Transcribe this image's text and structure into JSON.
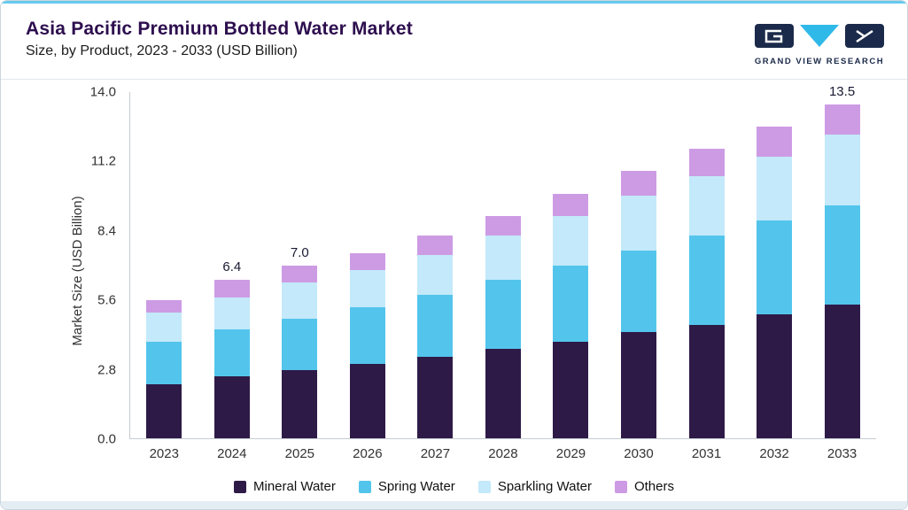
{
  "header": {
    "title": "Asia Pacific Premium Bottled Water Market",
    "subtitle": "Size, by Product, 2023 - 2033 (USD Billion)"
  },
  "logo": {
    "text": "GRAND VIEW RESEARCH"
  },
  "colors": {
    "accent_line": "#66C9EE",
    "title_text": "#2D0E4E",
    "axis_line": "#C6CCD2",
    "logo_navy": "#1B2A4A",
    "logo_cyan": "#2FB9E9"
  },
  "chart_data": {
    "type": "bar",
    "stacked": true,
    "title": "Asia Pacific Premium Bottled Water Market Size, by Product, 2023 - 2033 (USD Billion)",
    "xlabel": "",
    "ylabel": "Market Size (USD Billion)",
    "ylim": [
      0,
      14.0
    ],
    "yticks": [
      0.0,
      2.8,
      5.6,
      8.4,
      11.2,
      14.0
    ],
    "grid": false,
    "legend_position": "bottom",
    "categories": [
      "2023",
      "2024",
      "2025",
      "2026",
      "2027",
      "2028",
      "2029",
      "2030",
      "2031",
      "2032",
      "2033"
    ],
    "series": [
      {
        "name": "Mineral Water",
        "color": "#2E1A47",
        "values": [
          2.2,
          2.5,
          2.75,
          3.0,
          3.3,
          3.6,
          3.9,
          4.3,
          4.6,
          5.0,
          5.4
        ]
      },
      {
        "name": "Spring Water",
        "color": "#53C5EC",
        "values": [
          1.7,
          1.9,
          2.1,
          2.3,
          2.5,
          2.8,
          3.1,
          3.3,
          3.6,
          3.8,
          4.0
        ]
      },
      {
        "name": "Sparkling Water",
        "color": "#C3E9FA",
        "values": [
          1.2,
          1.3,
          1.45,
          1.5,
          1.6,
          1.8,
          2.0,
          2.2,
          2.4,
          2.6,
          2.9
        ]
      },
      {
        "name": "Others",
        "color": "#CD9BE4",
        "values": [
          0.5,
          0.7,
          0.7,
          0.7,
          0.8,
          0.8,
          0.9,
          1.0,
          1.1,
          1.2,
          1.2
        ]
      }
    ],
    "totals": [
      5.6,
      6.4,
      7.0,
      7.5,
      8.2,
      9.0,
      9.9,
      10.8,
      11.7,
      12.6,
      13.5
    ],
    "totals_labeled": {
      "2024": "6.4",
      "2025": "7.0",
      "2033": "13.5"
    }
  }
}
